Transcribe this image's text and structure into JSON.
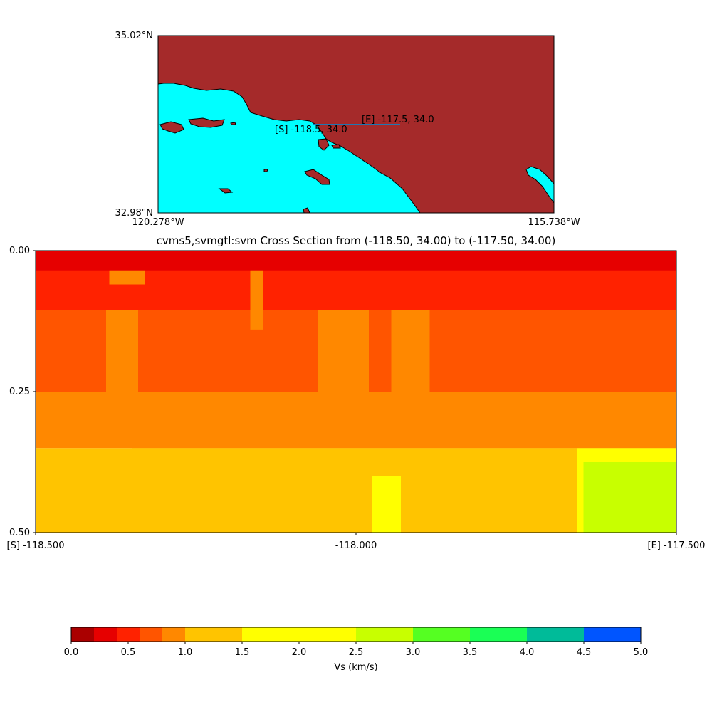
{
  "map": {
    "lat_top": "35.02°N",
    "lat_bottom": "32.98°N",
    "lon_left": "120.278°W",
    "lon_right": "115.738°W",
    "start_label": "[S] -118.5, 34.0",
    "end_label": "[E] -117.5, 34.0",
    "land_color": "#a52a2a",
    "water_color": "#00ffff",
    "line_color": "#1f77b4"
  },
  "chart_data": {
    "type": "heatmap",
    "title": "cvms5,svmgtl:svm Cross Section from (-118.50, 34.00) to (-117.50, 34.00)",
    "x_ticks": [
      {
        "value": -118.5,
        "label": "[S] -118.500"
      },
      {
        "value": -118.0,
        "label": "-118.000"
      },
      {
        "value": -117.5,
        "label": "[E] -117.500"
      }
    ],
    "y_ticks": [
      {
        "value": 0.0,
        "label": "0.00"
      },
      {
        "value": 0.25,
        "label": "0.25"
      },
      {
        "value": 0.5,
        "label": "0.50"
      }
    ],
    "xlim": [
      -118.5,
      -117.5
    ],
    "ylim": [
      0.5,
      0.0
    ],
    "y_inverted": true,
    "colorbar": {
      "label": "Vs (km/s)",
      "bounds": [
        0.0,
        0.2,
        0.4,
        0.6,
        0.8,
        1.0,
        1.5,
        2.0,
        2.5,
        3.0,
        3.5,
        4.0,
        4.5,
        5.0
      ],
      "colors": [
        "#aa0000",
        "#e60000",
        "#ff2200",
        "#ff5500",
        "#ff8800",
        "#ffc400",
        "#ffff00",
        "#ffff00",
        "#c8ff00",
        "#55ff22",
        "#1aff55",
        "#00bb99",
        "#0055ff"
      ],
      "tick_labels": [
        "0.0",
        "0.5",
        "1.0",
        "1.5",
        "2.0",
        "2.5",
        "3.0",
        "3.5",
        "4.0",
        "4.5",
        "5.0"
      ]
    },
    "regions": [
      {
        "x0": -118.5,
        "x1": -117.5,
        "y0": 0.35,
        "y1": 0.5,
        "vs": 1.2
      },
      {
        "x0": -118.35,
        "x1": -117.655,
        "y0": 0.35,
        "y1": 0.5,
        "vs": 1.3
      },
      {
        "x0": -117.655,
        "x1": -117.5,
        "y0": 0.35,
        "y1": 0.5,
        "vs": 2.0
      },
      {
        "x0": -117.645,
        "x1": -117.5,
        "y0": 0.375,
        "y1": 0.5,
        "vs": 2.7
      },
      {
        "x0": -117.975,
        "x1": -117.93,
        "y0": 0.4,
        "y1": 0.5,
        "vs": 2.0
      },
      {
        "x0": -118.5,
        "x1": -117.5,
        "y0": 0.0,
        "y1": 0.35,
        "vs": 0.9
      },
      {
        "x0": -118.5,
        "x1": -117.5,
        "y0": 0.0,
        "y1": 0.25,
        "vs": 0.7
      },
      {
        "x0": -118.39,
        "x1": -118.34,
        "y0": 0.08,
        "y1": 0.25,
        "vs": 0.9
      },
      {
        "x0": -118.06,
        "x1": -117.98,
        "y0": 0.06,
        "y1": 0.25,
        "vs": 0.9
      },
      {
        "x0": -117.945,
        "x1": -117.885,
        "y0": 0.08,
        "y1": 0.25,
        "vs": 0.9
      },
      {
        "x0": -118.5,
        "x1": -117.5,
        "y0": 0.0,
        "y1": 0.105,
        "vs": 0.5
      },
      {
        "x0": -118.385,
        "x1": -118.33,
        "y0": 0.0,
        "y1": 0.06,
        "vs": 0.9
      },
      {
        "x0": -118.165,
        "x1": -118.145,
        "y0": 0.0,
        "y1": 0.14,
        "vs": 0.9
      },
      {
        "x0": -118.5,
        "x1": -117.5,
        "y0": 0.0,
        "y1": 0.035,
        "vs": 0.3
      }
    ]
  }
}
